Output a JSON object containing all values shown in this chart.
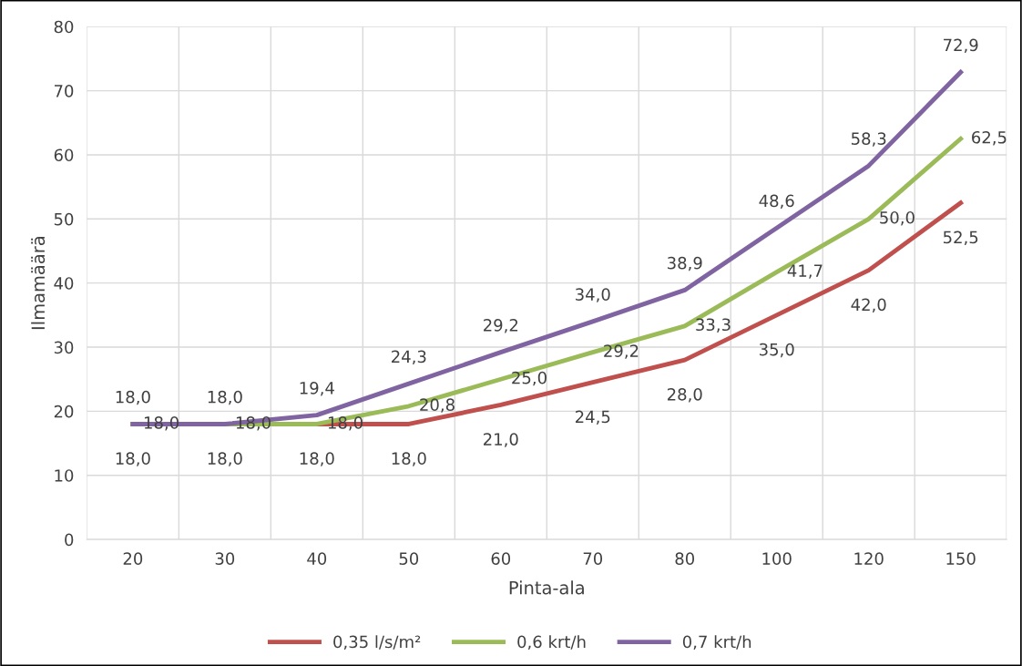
{
  "chart_data": {
    "type": "line",
    "xlabel": "Pinta-ala",
    "ylabel": "Ilmamäärä",
    "categories": [
      "20",
      "30",
      "40",
      "50",
      "60",
      "70",
      "80",
      "100",
      "120",
      "150"
    ],
    "series": [
      {
        "name": "0,35 l/s/m²",
        "color": "#c0504d",
        "values": [
          18.0,
          18.0,
          18.0,
          18.0,
          21.0,
          24.5,
          28.0,
          35.0,
          42.0,
          52.5
        ],
        "value_labels": [
          "18,0",
          "18,0",
          "18,0",
          "18,0",
          "21,0",
          "24,5",
          "28,0",
          "35,0",
          "42,0",
          "52,5"
        ]
      },
      {
        "name": "0,6 krt/h",
        "color": "#9bbb59",
        "values": [
          18.0,
          18.0,
          18.0,
          20.8,
          25.0,
          29.2,
          33.3,
          41.7,
          50.0,
          62.5
        ],
        "value_labels": [
          "18,0",
          "18,0",
          "18,0",
          "20,8",
          "25,0",
          "29,2",
          "33,3",
          "41,7",
          "50,0",
          "62,5"
        ]
      },
      {
        "name": "0,7 krt/h",
        "color": "#8064a2",
        "values": [
          18.0,
          18.0,
          19.4,
          24.3,
          29.2,
          34.0,
          38.9,
          48.6,
          58.3,
          72.9
        ],
        "value_labels": [
          "18,0",
          "18,0",
          "19,4",
          "24,3",
          "29,2",
          "34,0",
          "38,9",
          "48,6",
          "58,3",
          "72,9"
        ]
      }
    ],
    "ylim": [
      0,
      80
    ],
    "yticks": [
      0,
      10,
      20,
      30,
      40,
      50,
      60,
      70,
      80
    ],
    "grid": true,
    "legend": "bottom",
    "marker": "none",
    "line_style": "solid"
  }
}
